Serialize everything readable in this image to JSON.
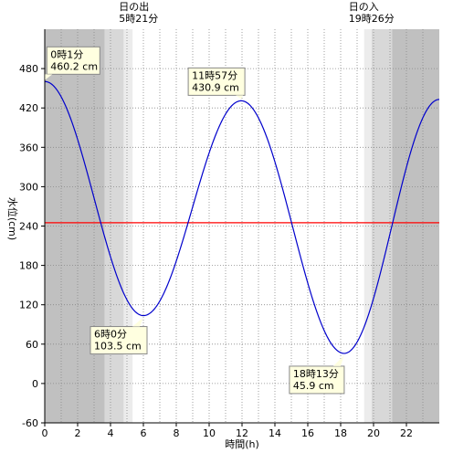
{
  "chart_data": {
    "type": "line",
    "xlabel": "時間(h)",
    "ylabel": "水位(cm)",
    "xlim": [
      0,
      24
    ],
    "ylim": [
      -60,
      540
    ],
    "x_ticks": [
      "0",
      "2",
      "4",
      "6",
      "8",
      "10",
      "12",
      "14",
      "16",
      "18",
      "20",
      "22"
    ],
    "y_ticks": [
      "-60",
      "0",
      "60",
      "120",
      "180",
      "240",
      "300",
      "360",
      "420",
      "480"
    ],
    "grid": true,
    "mean_level": 245,
    "sunrise": {
      "title": "日の出",
      "time": "5時21分",
      "hour": 5.35
    },
    "sunset": {
      "title": "日の入",
      "time": "19時26分",
      "hour": 19.43
    },
    "extrema": [
      {
        "time": "0時1分",
        "level": "460.2 cm",
        "hour": 0.017,
        "value": 460.2
      },
      {
        "time": "6時0分",
        "level": "103.5 cm",
        "hour": 6.0,
        "value": 103.5
      },
      {
        "time": "11時57分",
        "level": "430.9 cm",
        "hour": 11.95,
        "value": 430.9
      },
      {
        "time": "18時13分",
        "level": "45.9 cm",
        "hour": 18.217,
        "value": 45.9
      }
    ],
    "series": [
      {
        "color": "#0000cc",
        "x": [
          0,
          0.017,
          6.0,
          11.95,
          18.217,
          24
        ],
        "y": [
          460,
          460.2,
          103.5,
          430.9,
          45.9,
          433
        ]
      }
    ],
    "colors": {
      "night": "#c0c0c0",
      "twilight1": "#d8d8d8",
      "twilight2": "#ececec",
      "mean_line": "#ff0000",
      "curve": "#0000cc",
      "annotation_bg": "#ffffe0"
    }
  }
}
